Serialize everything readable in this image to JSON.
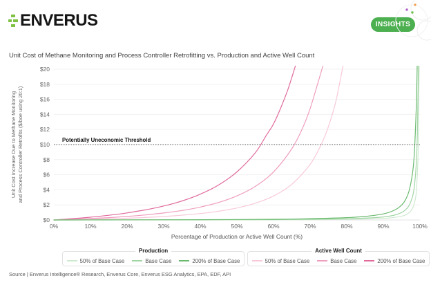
{
  "header": {
    "logo_text": "ENVERUS",
    "insights_label": "INSIGHTS"
  },
  "chart_data": {
    "type": "line",
    "title": "Unit Cost of Methane Monitoring and Process Controller Retrofitting vs. Production and Active Well Count",
    "xlabel": "Percentage of Production or Active Well Count (%)",
    "ylabel_line1": "Unit Cost Increase Due to Methane Monitoring",
    "ylabel_line2": "and Process Controller Retrofits ($/boe using 20:1)",
    "xlim": [
      0,
      100
    ],
    "ylim": [
      0,
      20
    ],
    "x_ticks": [
      "0%",
      "10%",
      "20%",
      "30%",
      "40%",
      "50%",
      "60%",
      "70%",
      "80%",
      "90%",
      "100%"
    ],
    "y_ticks": [
      "$0",
      "$2",
      "$4",
      "$6",
      "$8",
      "$10",
      "$12",
      "$14",
      "$16",
      "$18",
      "$20"
    ],
    "grid": "horizontal",
    "threshold": {
      "value": 10,
      "label": "Potentially Uneconomic Threshold",
      "style": "dotted",
      "color": "#555555"
    },
    "legend_groups": [
      {
        "title": "Production",
        "items": [
          {
            "label": "50% of Base Case",
            "color": "#cfe9d0"
          },
          {
            "label": "Base Case",
            "color": "#a2d5a4"
          },
          {
            "label": "200% of Base Case",
            "color": "#6aba6e"
          }
        ]
      },
      {
        "title": "Active Well Count",
        "items": [
          {
            "label": "50% of Base Case",
            "color": "#f7c9da"
          },
          {
            "label": "Base Case",
            "color": "#ef9dbe"
          },
          {
            "label": "200% of Base Case",
            "color": "#e06a9c"
          }
        ]
      }
    ],
    "series": [
      {
        "group": "Active Well Count",
        "name": "50% of Base Case",
        "color": "#f7c9da",
        "points": [
          [
            0,
            0
          ],
          [
            10,
            0.09
          ],
          [
            20,
            0.23
          ],
          [
            30,
            0.46
          ],
          [
            40,
            0.85
          ],
          [
            45,
            1.16
          ],
          [
            50,
            1.59
          ],
          [
            55,
            2.22
          ],
          [
            60,
            3.18
          ],
          [
            65,
            4.73
          ],
          [
            70,
            7.38
          ],
          [
            73,
            9.97
          ],
          [
            75,
            12.39
          ],
          [
            77,
            15.67
          ],
          [
            79,
            20.5
          ]
        ]
      },
      {
        "group": "Active Well Count",
        "name": "Base Case",
        "color": "#ef9dbe",
        "points": [
          [
            0,
            0
          ],
          [
            5,
            0.08
          ],
          [
            10,
            0.19
          ],
          [
            15,
            0.31
          ],
          [
            20,
            0.47
          ],
          [
            25,
            0.67
          ],
          [
            30,
            0.93
          ],
          [
            35,
            1.26
          ],
          [
            40,
            1.71
          ],
          [
            45,
            2.32
          ],
          [
            50,
            3.19
          ],
          [
            55,
            4.45
          ],
          [
            60,
            6.37
          ],
          [
            65,
            9.45
          ],
          [
            68,
            12.26
          ],
          [
            70,
            14.76
          ],
          [
            72,
            17.97
          ],
          [
            73.5,
            20.5
          ]
        ]
      },
      {
        "group": "Active Well Count",
        "name": "200% of Base Case",
        "color": "#e06a9c",
        "points": [
          [
            0,
            0
          ],
          [
            5,
            0.17
          ],
          [
            10,
            0.37
          ],
          [
            15,
            0.62
          ],
          [
            20,
            0.94
          ],
          [
            25,
            1.34
          ],
          [
            30,
            1.85
          ],
          [
            35,
            2.52
          ],
          [
            40,
            3.42
          ],
          [
            45,
            4.64
          ],
          [
            50,
            6.38
          ],
          [
            55,
            8.9
          ],
          [
            58,
            11.2
          ],
          [
            60,
            12.74
          ],
          [
            62,
            14.9
          ],
          [
            64,
            17.4
          ],
          [
            66,
            20.5
          ]
        ]
      },
      {
        "group": "Production",
        "name": "50% of Base Case",
        "color": "#cfe9d0",
        "points": [
          [
            0,
            0
          ],
          [
            40,
            0.01
          ],
          [
            60,
            0.02
          ],
          [
            70,
            0.04
          ],
          [
            80,
            0.08
          ],
          [
            90,
            0.2
          ],
          [
            95,
            0.5
          ],
          [
            97,
            0.95
          ],
          [
            98,
            1.58
          ],
          [
            98.5,
            2.27
          ],
          [
            99,
            3.76
          ],
          [
            99.5,
            8.94
          ],
          [
            99.7,
            16.9
          ],
          [
            99.8,
            20.5
          ]
        ]
      },
      {
        "group": "Production",
        "name": "Base Case",
        "color": "#a2d5a4",
        "points": [
          [
            0,
            0
          ],
          [
            20,
            0.01
          ],
          [
            40,
            0.02
          ],
          [
            60,
            0.05
          ],
          [
            70,
            0.09
          ],
          [
            80,
            0.16
          ],
          [
            85,
            0.24
          ],
          [
            90,
            0.4
          ],
          [
            93,
            0.64
          ],
          [
            95,
            0.99
          ],
          [
            96,
            1.32
          ],
          [
            97,
            1.9
          ],
          [
            98,
            3.16
          ],
          [
            98.5,
            4.53
          ],
          [
            99,
            7.52
          ],
          [
            99.3,
            11.5
          ],
          [
            99.5,
            17.9
          ],
          [
            99.6,
            20.5
          ]
        ]
      },
      {
        "group": "Production",
        "name": "200% of Base Case",
        "color": "#6aba6e",
        "points": [
          [
            0,
            0
          ],
          [
            20,
            0.02
          ],
          [
            40,
            0.04
          ],
          [
            60,
            0.09
          ],
          [
            70,
            0.17
          ],
          [
            80,
            0.31
          ],
          [
            85,
            0.47
          ],
          [
            90,
            0.81
          ],
          [
            93,
            1.29
          ],
          [
            95,
            1.98
          ],
          [
            96,
            2.64
          ],
          [
            97,
            3.8
          ],
          [
            98,
            6.32
          ],
          [
            98.5,
            9.06
          ],
          [
            99,
            15.04
          ],
          [
            99.25,
            20.5
          ]
        ]
      }
    ]
  },
  "source": "Source | Enverus Intelligence® Research, Enverus Core, Enverus ESG Analytics, EPA, EDF, API"
}
